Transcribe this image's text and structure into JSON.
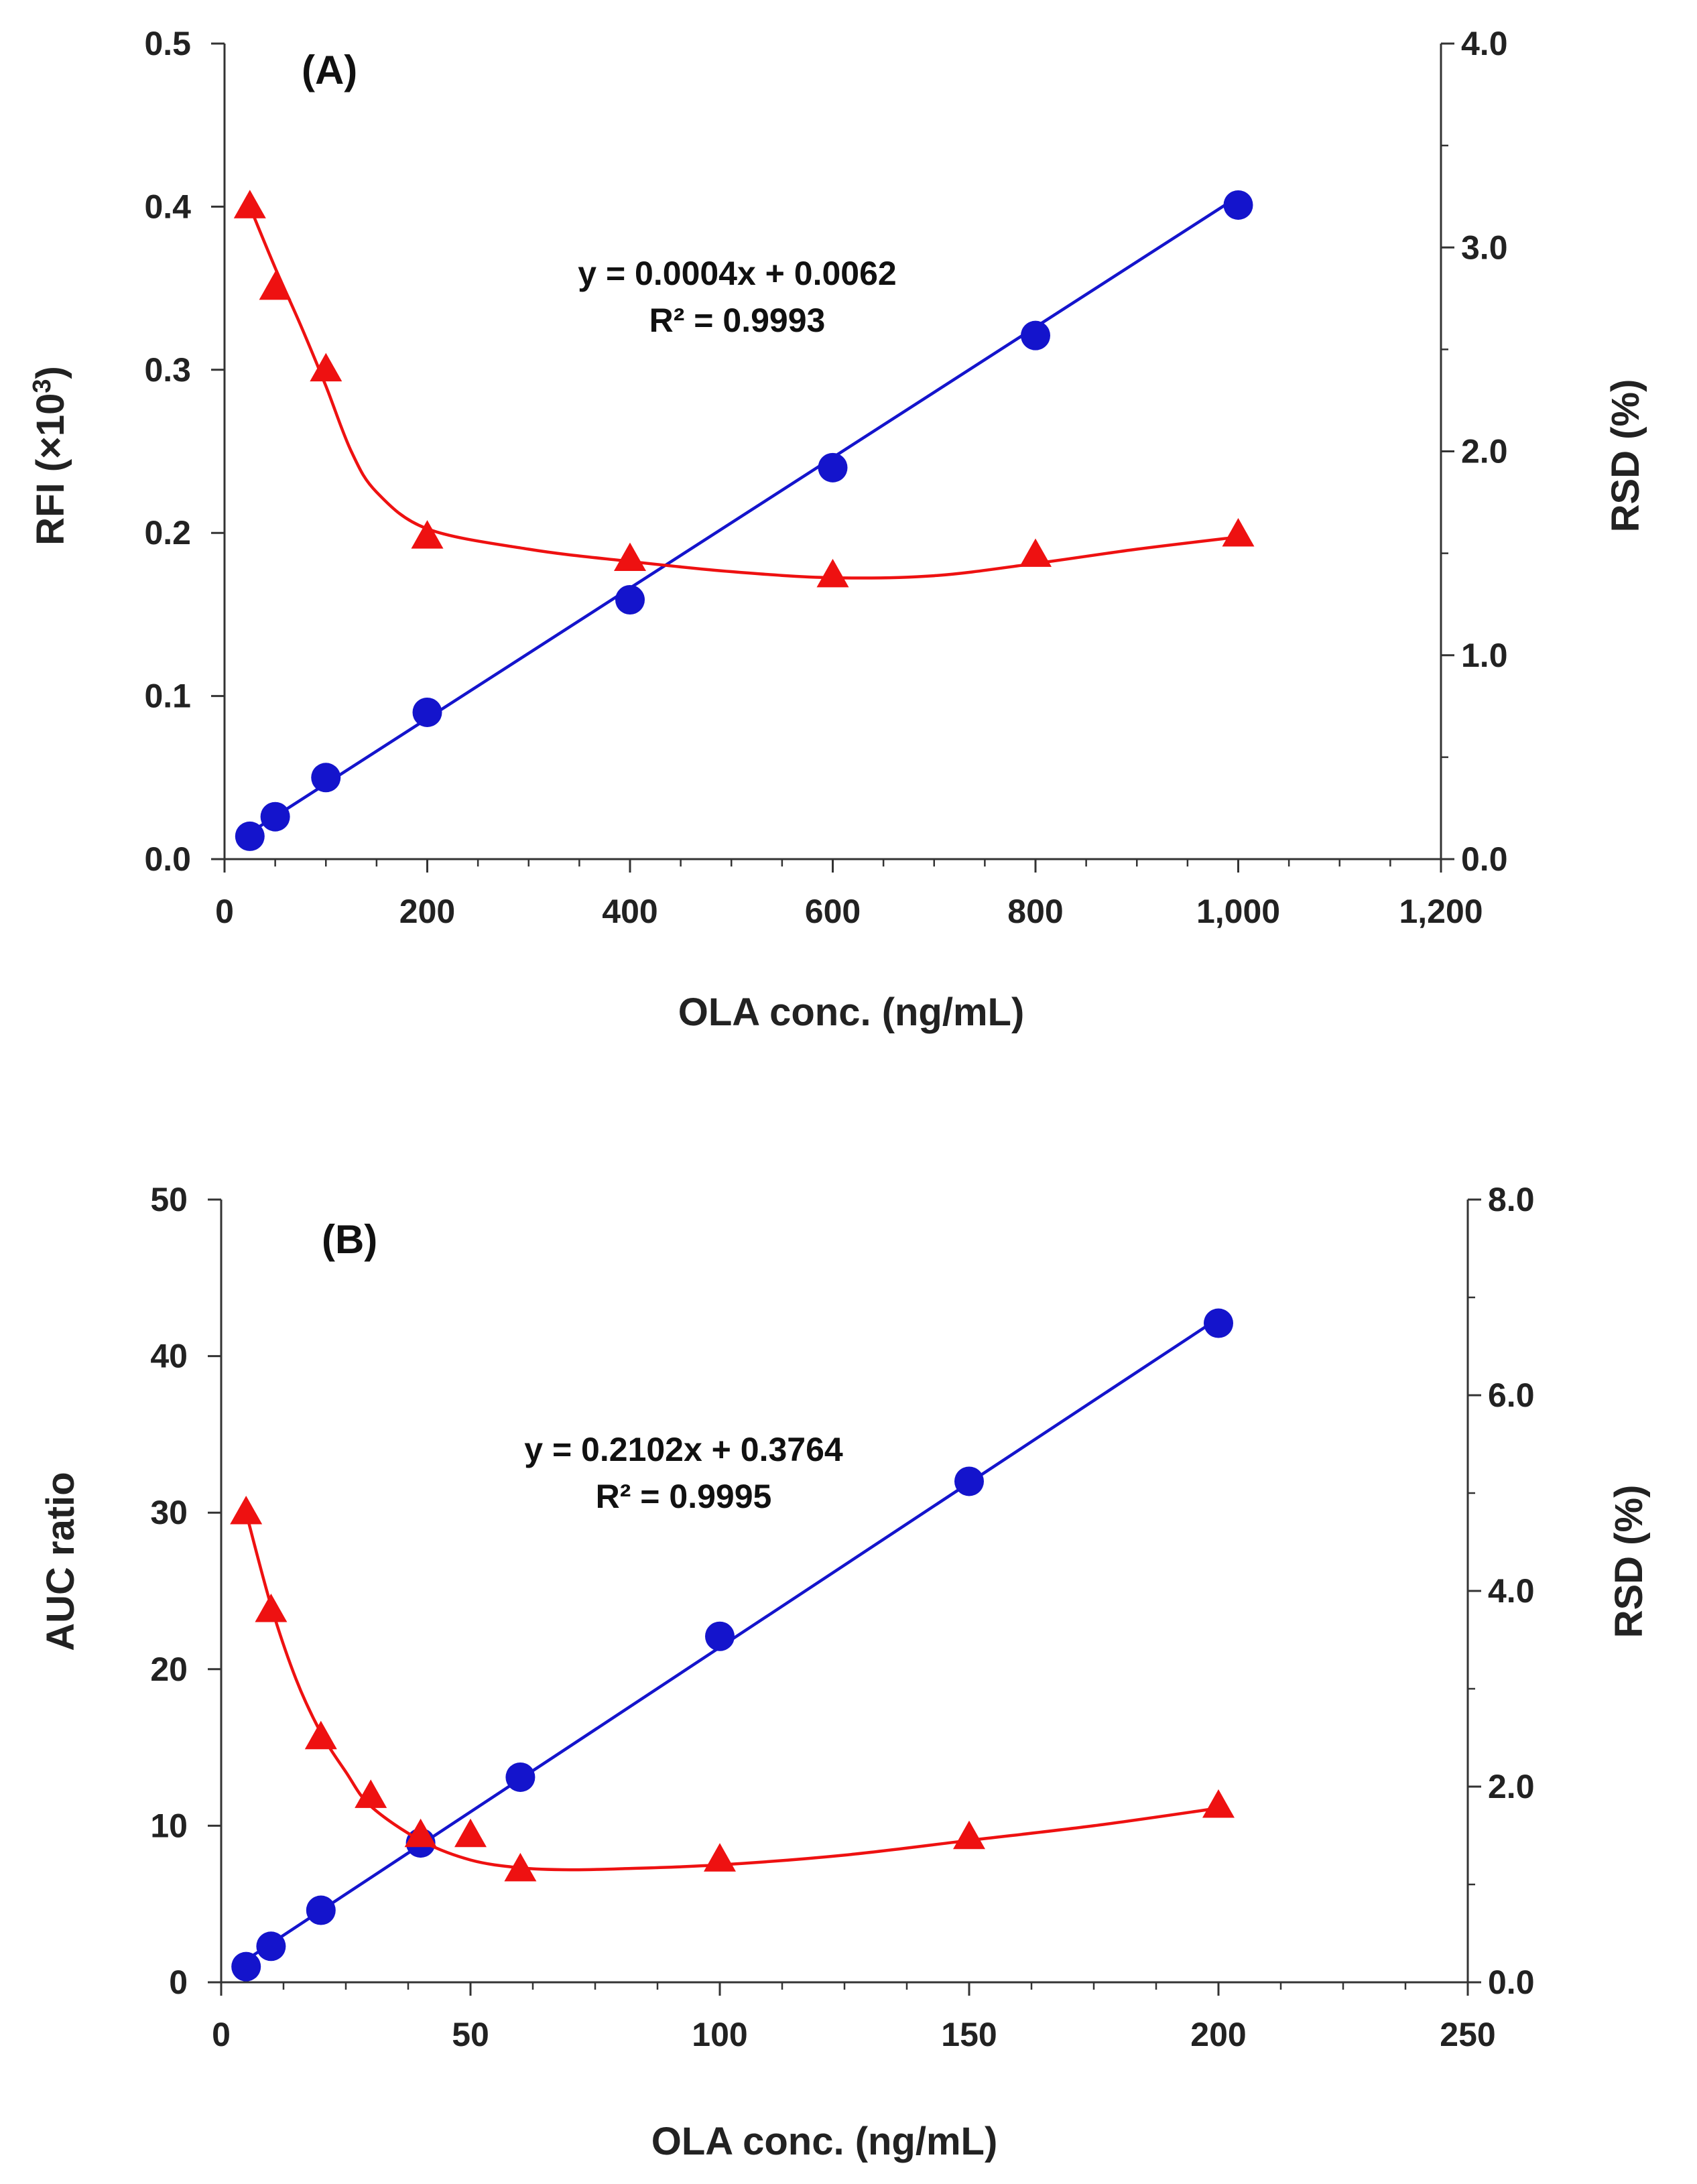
{
  "chart_data": [
    {
      "type": "scatter",
      "panel_label": "(A)",
      "xlabel": "OLA conc. (ng/mL)",
      "ylabel": "RFI",
      "ylabel_suffix": "(×10",
      "ylabel_sup": "3",
      "ylabel_close": ")",
      "y2label": "RSD (%)",
      "xlim": [
        0,
        1200
      ],
      "ylim": [
        0,
        0.5
      ],
      "y2lim": [
        0,
        4.0
      ],
      "xticks": [
        0,
        200,
        400,
        600,
        800,
        1000,
        1200
      ],
      "xtick_labels": [
        "0",
        "200",
        "400",
        "600",
        "800",
        "1,000",
        "1,200"
      ],
      "yticks": [
        0,
        0.1,
        0.2,
        0.3,
        0.4,
        0.5
      ],
      "ytick_labels": [
        "0.0",
        "0.1",
        "0.2",
        "0.3",
        "0.4",
        "0.5"
      ],
      "y2ticks": [
        0,
        1,
        2,
        3,
        4
      ],
      "y2tick_labels": [
        "0.0",
        "1.0",
        "2.0",
        "3.0",
        "4.0"
      ],
      "equation": "y = 0.0004x + 0.0062",
      "r2": "R² = 0.9993",
      "series": [
        {
          "name": "RFI",
          "axis": "left",
          "marker": "circle",
          "color": "#1414cc",
          "x": [
            25,
            50,
            100,
            200,
            400,
            600,
            800,
            1000
          ],
          "y": [
            0.014,
            0.026,
            0.05,
            0.09,
            0.159,
            0.24,
            0.321,
            0.401
          ],
          "fit": {
            "type": "linear",
            "slope": 0.0004,
            "intercept": 0.0062,
            "x_range": [
              25,
              1000
            ]
          }
        },
        {
          "name": "RSD",
          "axis": "right",
          "marker": "triangle",
          "color": "#ee1111",
          "x": [
            25,
            50,
            100,
            200,
            400,
            600,
            800,
            1000
          ],
          "y": [
            3.2,
            2.8,
            2.4,
            1.58,
            1.47,
            1.39,
            1.49,
            1.59
          ],
          "curve": {
            "x": [
              25,
              50,
              75,
              100,
              125,
              150,
              200,
              300,
              400,
              500,
              600,
              700,
              800,
              900,
              1000
            ],
            "y": [
              3.2,
              2.9,
              2.62,
              2.32,
              2.0,
              1.8,
              1.62,
              1.52,
              1.46,
              1.41,
              1.38,
              1.39,
              1.45,
              1.52,
              1.58
            ]
          }
        }
      ]
    },
    {
      "type": "scatter",
      "panel_label": "(B)",
      "xlabel": "OLA conc. (ng/mL)",
      "ylabel": "AUC ratio",
      "y2label": "RSD (%)",
      "xlim": [
        0,
        250
      ],
      "ylim": [
        0,
        50
      ],
      "y2lim": [
        0,
        8.0
      ],
      "xticks": [
        0,
        50,
        100,
        150,
        200,
        250
      ],
      "xtick_labels": [
        "0",
        "50",
        "100",
        "150",
        "200",
        "250"
      ],
      "yticks": [
        0,
        10,
        20,
        30,
        40,
        50
      ],
      "ytick_labels": [
        "0",
        "10",
        "20",
        "30",
        "40",
        "50"
      ],
      "y2ticks": [
        0,
        2,
        4,
        6,
        8
      ],
      "y2tick_labels": [
        "0.0",
        "2.0",
        "4.0",
        "6.0",
        "8.0"
      ],
      "equation": "y = 0.2102x + 0.3764",
      "r2": "R² = 0.9995",
      "series": [
        {
          "name": "AUC ratio",
          "axis": "left",
          "marker": "circle",
          "color": "#1414cc",
          "x": [
            5,
            10,
            20,
            40,
            60,
            100,
            150,
            200
          ],
          "y": [
            1.0,
            2.3,
            4.6,
            8.9,
            13.1,
            22.1,
            32.0,
            42.1
          ],
          "fit": {
            "type": "linear",
            "slope": 0.2102,
            "intercept": 0.3764,
            "x_range": [
              5,
              200
            ]
          }
        },
        {
          "name": "RSD",
          "axis": "right",
          "marker": "triangle",
          "color": "#ee1111",
          "x": [
            5,
            10,
            20,
            30,
            40,
            50,
            60,
            100,
            150,
            200
          ],
          "y": [
            4.8,
            3.8,
            2.5,
            1.9,
            1.5,
            1.5,
            1.15,
            1.25,
            1.48,
            1.8
          ],
          "curve": {
            "x": [
              5,
              10,
              15,
              20,
              25,
              30,
              40,
              50,
              60,
              70,
              80,
              100,
              125,
              150,
              175,
              200
            ],
            "y": [
              4.8,
              3.85,
              3.1,
              2.55,
              2.15,
              1.8,
              1.45,
              1.25,
              1.17,
              1.15,
              1.16,
              1.2,
              1.3,
              1.45,
              1.6,
              1.78
            ]
          }
        }
      ]
    }
  ]
}
